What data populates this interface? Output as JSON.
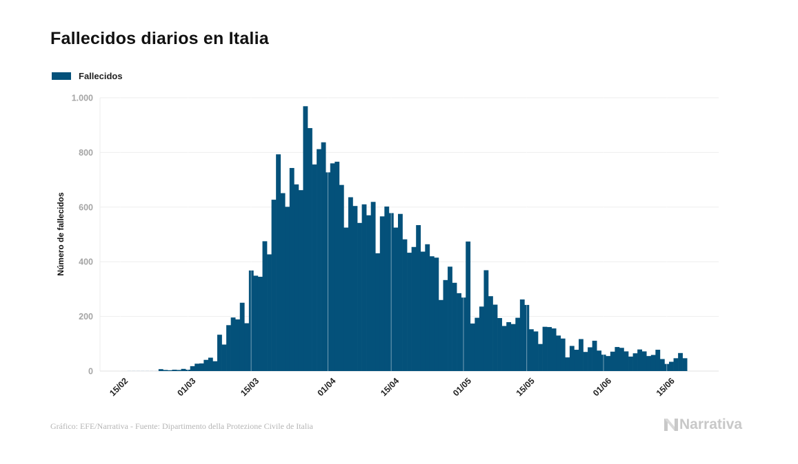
{
  "chart_data": {
    "type": "bar",
    "title": "Fallecidos diarios en Italia",
    "xlabel": "",
    "ylabel": "Número de fallecidos",
    "ylim": [
      0,
      1000
    ],
    "yticks": [
      0,
      200,
      400,
      600,
      800,
      1000
    ],
    "ytick_labels": [
      "0",
      "200",
      "400",
      "600",
      "800",
      "1.000"
    ],
    "grid": true,
    "legend": {
      "position": "top-left",
      "entries": [
        "Fallecidos"
      ]
    },
    "color": "#04517a",
    "start_date": "2020-02-17",
    "xticks": [
      {
        "label": "15/02",
        "date": "2020-02-15"
      },
      {
        "label": "01/03",
        "date": "2020-03-01"
      },
      {
        "label": "15/03",
        "date": "2020-03-15"
      },
      {
        "label": "01/04",
        "date": "2020-04-01"
      },
      {
        "label": "15/04",
        "date": "2020-04-15"
      },
      {
        "label": "01/05",
        "date": "2020-05-01"
      },
      {
        "label": "15/05",
        "date": "2020-05-15"
      },
      {
        "label": "01/06",
        "date": "2020-06-01"
      },
      {
        "label": "15/06",
        "date": "2020-06-15"
      }
    ],
    "series": [
      {
        "name": "Fallecidos",
        "values": [
          0,
          0,
          0,
          0,
          0,
          0,
          0,
          7,
          4,
          3,
          5,
          4,
          8,
          5,
          18,
          27,
          28,
          41,
          49,
          36,
          133,
          97,
          168,
          196,
          189,
          250,
          175,
          368,
          349,
          345,
          475,
          427,
          627,
          793,
          651,
          601,
          743,
          683,
          662,
          969,
          889,
          756,
          812,
          837,
          727,
          760,
          766,
          681,
          525,
          636,
          604,
          542,
          610,
          570,
          619,
          431,
          566,
          602,
          578,
          525,
          575,
          482,
          433,
          454,
          534,
          437,
          464,
          420,
          415,
          260,
          333,
          382,
          323,
          285,
          269,
          474,
          174,
          195,
          236,
          369,
          274,
          243,
          194,
          165,
          179,
          172,
          195,
          262,
          242,
          153,
          145,
          99,
          162,
          161,
          156,
          130,
          119,
          50,
          92,
          78,
          117,
          70,
          87,
          111,
          75,
          60,
          55,
          71,
          88,
          85,
          72,
          53,
          65,
          79,
          72,
          55,
          59,
          78,
          44,
          26,
          34,
          47,
          66,
          47
        ]
      }
    ]
  },
  "footer": {
    "credit": "Gráfico: EFE/Narrativa - Fuente: Dipartimento della Protezione Civile de Italia"
  },
  "logo": {
    "text": "Narrativa",
    "icon": "narrativa-n-icon"
  }
}
